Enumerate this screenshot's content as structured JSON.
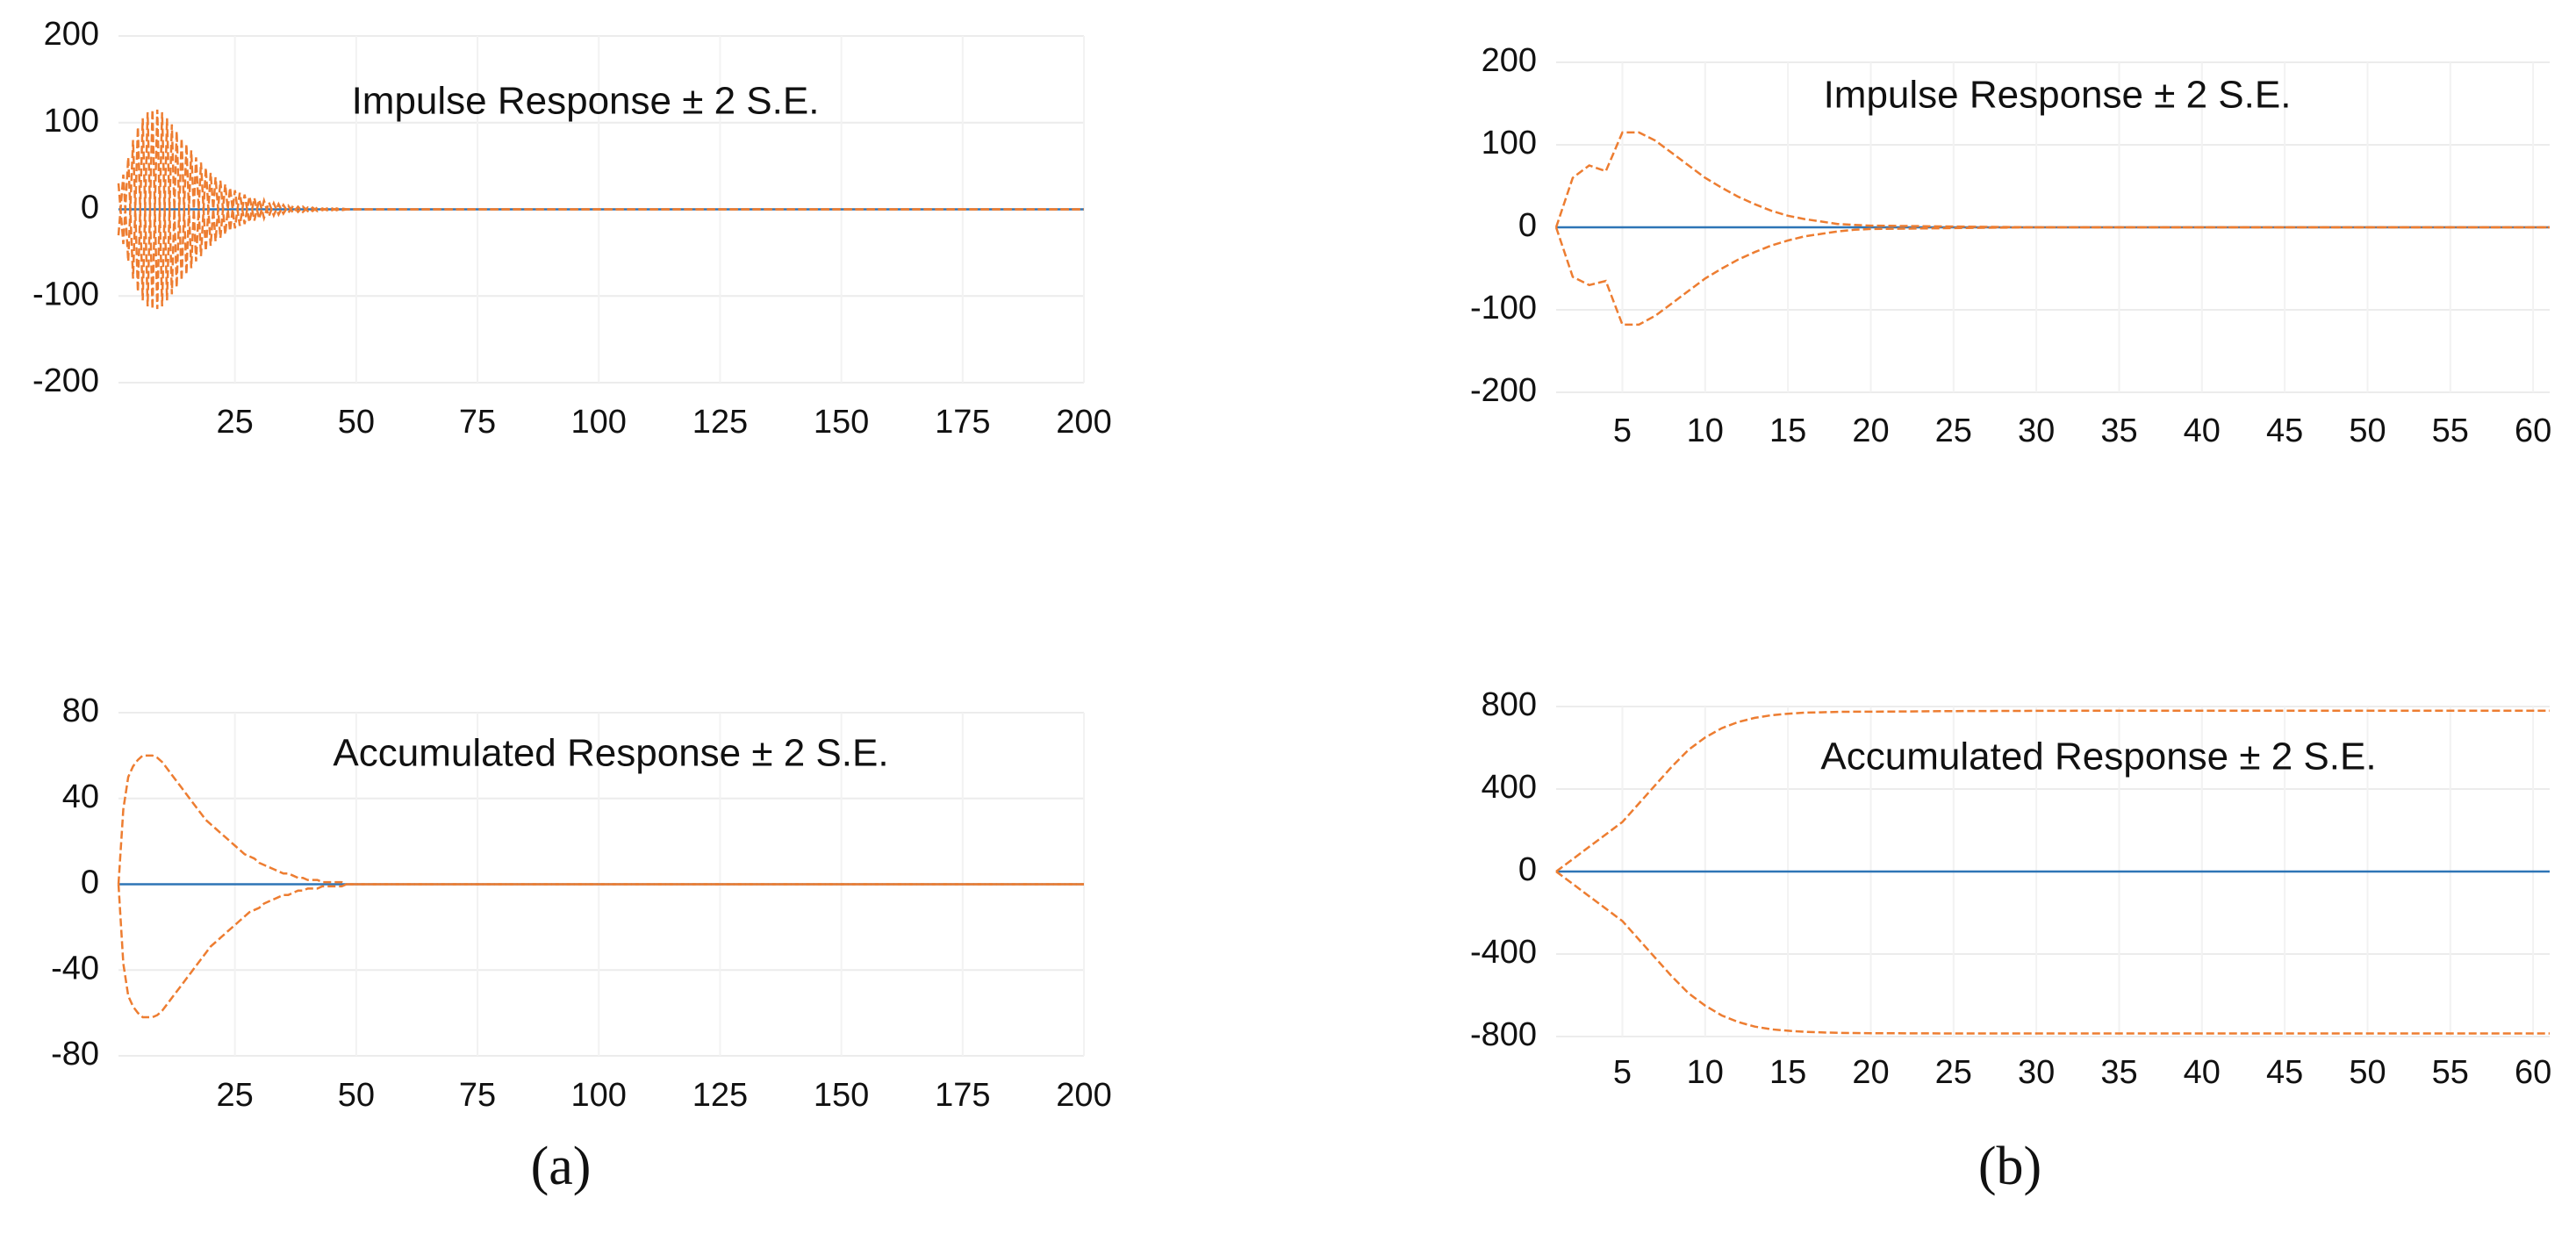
{
  "chart_data": [
    {
      "type": "line",
      "title": "Impulse Response ± 2 S.E.",
      "x": [
        1,
        2,
        3,
        4,
        5,
        6,
        7,
        8,
        9,
        10,
        11,
        12,
        13,
        14,
        15,
        16,
        17,
        18,
        19,
        20,
        21,
        22,
        23,
        24,
        25,
        26,
        27,
        28,
        29,
        30,
        31,
        32,
        33,
        34,
        35,
        36,
        37,
        38,
        39,
        40,
        41,
        42,
        43,
        44,
        45,
        46,
        47,
        48,
        49,
        50,
        60,
        70,
        80,
        90,
        100,
        110,
        120,
        130,
        140,
        150,
        160,
        170,
        180,
        190,
        200
      ],
      "xlim": [
        1,
        200
      ],
      "xticks": [
        25,
        50,
        75,
        100,
        125,
        150,
        175,
        200
      ],
      "ylim": [
        -200,
        200
      ],
      "yticks": [
        -200,
        -100,
        0,
        100,
        200
      ],
      "grid": true,
      "series": [
        {
          "color": "#2e75b6",
          "dashed": false,
          "values": [
            0,
            0,
            0,
            0,
            0,
            0,
            0,
            0,
            0,
            0,
            0,
            0,
            0,
            0,
            0,
            0,
            0,
            0,
            0,
            0,
            0,
            0,
            0,
            0,
            0,
            0,
            0,
            0,
            0,
            0,
            0,
            0,
            0,
            0,
            0,
            0,
            0,
            0,
            0,
            0,
            0,
            0,
            0,
            0,
            0,
            0,
            0,
            0,
            0,
            0,
            0,
            0,
            0,
            0,
            0,
            0,
            0,
            0,
            0,
            0,
            0,
            0,
            0,
            0,
            0
          ]
        },
        {
          "color": "#ed7d31",
          "dashed": true,
          "values": [
            30,
            -40,
            60,
            -80,
            95,
            -105,
            112,
            -115,
            115,
            -112,
            105,
            -98,
            90,
            -82,
            75,
            -68,
            60,
            -54,
            48,
            -42,
            37,
            -33,
            29,
            -25,
            22,
            -19,
            17,
            -15,
            13,
            -11,
            10,
            -8,
            7,
            -6,
            5,
            -4,
            4,
            -3,
            3,
            -2,
            2,
            -2,
            1,
            -1,
            1,
            -1,
            1,
            0,
            0,
            0,
            0,
            0,
            0,
            0,
            0,
            0,
            0,
            0,
            0,
            0,
            0,
            0,
            0,
            0,
            0
          ]
        },
        {
          "color": "#ed7d31",
          "dashed": true,
          "values": [
            -30,
            40,
            -60,
            80,
            -95,
            105,
            -112,
            115,
            -115,
            112,
            -105,
            98,
            -90,
            82,
            -75,
            68,
            -60,
            54,
            -48,
            42,
            -37,
            33,
            -29,
            25,
            -22,
            19,
            -17,
            15,
            -13,
            11,
            -10,
            8,
            -7,
            6,
            -5,
            4,
            -4,
            3,
            -3,
            2,
            -2,
            2,
            -1,
            1,
            -1,
            1,
            -1,
            0,
            0,
            0,
            0,
            0,
            0,
            0,
            0,
            0,
            0,
            0,
            0,
            0,
            0,
            0,
            0,
            0,
            0
          ]
        }
      ]
    },
    {
      "type": "line",
      "title": "Accumulated Response ± 2 S.E.",
      "x": [
        1,
        2,
        3,
        4,
        5,
        6,
        7,
        8,
        9,
        10,
        11,
        12,
        13,
        14,
        15,
        16,
        17,
        18,
        19,
        20,
        21,
        22,
        23,
        24,
        25,
        26,
        27,
        28,
        29,
        30,
        31,
        32,
        33,
        34,
        35,
        36,
        37,
        38,
        39,
        40,
        41,
        42,
        43,
        44,
        45,
        46,
        47,
        48,
        49,
        50,
        60,
        70,
        80,
        90,
        100,
        110,
        120,
        130,
        140,
        150,
        160,
        170,
        180,
        190,
        200
      ],
      "xlim": [
        1,
        200
      ],
      "xticks": [
        25,
        50,
        75,
        100,
        125,
        150,
        175,
        200
      ],
      "ylim": [
        -80,
        80
      ],
      "yticks": [
        -80,
        -40,
        0,
        40,
        80
      ],
      "grid": true,
      "series": [
        {
          "color": "#2e75b6",
          "dashed": false,
          "values": [
            0,
            0,
            0,
            0,
            0,
            0,
            0,
            0,
            0,
            0,
            0,
            0,
            0,
            0,
            0,
            0,
            0,
            0,
            0,
            0,
            0,
            0,
            0,
            0,
            0,
            0,
            0,
            0,
            0,
            0,
            0,
            0,
            0,
            0,
            0,
            0,
            0,
            0,
            0,
            0,
            0,
            0,
            0,
            0,
            0,
            0,
            0,
            0,
            0,
            0,
            0,
            0,
            0,
            0,
            0,
            0,
            0,
            0,
            0,
            0,
            0,
            0,
            0,
            0,
            0
          ]
        },
        {
          "color": "#ed7d31",
          "dashed": true,
          "values": [
            0,
            35,
            50,
            55,
            58,
            60,
            60,
            60,
            59,
            57,
            54,
            51,
            48,
            45,
            42,
            39,
            36,
            33,
            30,
            28,
            26,
            24,
            22,
            20,
            18,
            16,
            14,
            13,
            12,
            10,
            9,
            8,
            7,
            6,
            5,
            5,
            4,
            3,
            3,
            2,
            2,
            2,
            1,
            1,
            1,
            1,
            1,
            0,
            0,
            0,
            0,
            0,
            0,
            0,
            0,
            0,
            0,
            0,
            0,
            0,
            0,
            0,
            0,
            0,
            0
          ]
        },
        {
          "color": "#ed7d31",
          "dashed": true,
          "values": [
            0,
            -37,
            -52,
            -57,
            -60,
            -62,
            -62,
            -62,
            -61,
            -59,
            -56,
            -53,
            -50,
            -47,
            -44,
            -41,
            -38,
            -35,
            -32,
            -29,
            -27,
            -25,
            -23,
            -21,
            -19,
            -17,
            -15,
            -13,
            -12,
            -11,
            -9,
            -8,
            -7,
            -6,
            -5,
            -5,
            -4,
            -3,
            -3,
            -2,
            -2,
            -2,
            -1,
            -1,
            -1,
            -1,
            -1,
            0,
            0,
            0,
            0,
            0,
            0,
            0,
            0,
            0,
            0,
            0,
            0,
            0,
            0,
            0,
            0,
            0,
            0
          ]
        }
      ]
    },
    {
      "type": "line",
      "title": "Impulse Response ± 2 S.E.",
      "x": [
        1,
        2,
        3,
        4,
        5,
        6,
        7,
        8,
        9,
        10,
        11,
        12,
        13,
        14,
        15,
        16,
        17,
        18,
        19,
        20,
        25,
        30,
        35,
        40,
        45,
        50,
        55,
        60,
        61
      ],
      "xlim": [
        1,
        61
      ],
      "xticks": [
        5,
        10,
        15,
        20,
        25,
        30,
        35,
        40,
        45,
        50,
        55,
        60
      ],
      "ylim": [
        -200,
        200
      ],
      "yticks": [
        -200,
        -100,
        0,
        100,
        200
      ],
      "grid": true,
      "series": [
        {
          "color": "#2e75b6",
          "dashed": false,
          "values": [
            0,
            0,
            0,
            0,
            0,
            0,
            0,
            0,
            0,
            0,
            0,
            0,
            0,
            0,
            0,
            0,
            0,
            0,
            0,
            0,
            0,
            0,
            0,
            0,
            0,
            0,
            0,
            0,
            0
          ]
        },
        {
          "color": "#ed7d31",
          "dashed": true,
          "values": [
            0,
            60,
            75,
            68,
            115,
            115,
            105,
            90,
            75,
            60,
            48,
            37,
            28,
            20,
            14,
            10,
            7,
            4,
            3,
            2,
            1,
            0,
            0,
            0,
            0,
            0,
            0,
            0,
            0
          ]
        },
        {
          "color": "#ed7d31",
          "dashed": true,
          "values": [
            0,
            -60,
            -70,
            -65,
            -118,
            -118,
            -107,
            -92,
            -77,
            -62,
            -50,
            -39,
            -30,
            -22,
            -16,
            -11,
            -8,
            -5,
            -3,
            -2,
            -1,
            0,
            0,
            0,
            0,
            0,
            0,
            0,
            0
          ]
        }
      ]
    },
    {
      "type": "line",
      "title": "Accumulated Response ± 2 S.E.",
      "x": [
        1,
        2,
        3,
        4,
        5,
        6,
        7,
        8,
        9,
        10,
        11,
        12,
        13,
        14,
        15,
        16,
        17,
        18,
        19,
        20,
        25,
        30,
        35,
        40,
        45,
        50,
        55,
        60,
        61
      ],
      "xlim": [
        1,
        61
      ],
      "xticks": [
        5,
        10,
        15,
        20,
        25,
        30,
        35,
        40,
        45,
        50,
        55,
        60
      ],
      "ylim": [
        -800,
        800
      ],
      "yticks": [
        -800,
        -400,
        0,
        400,
        800
      ],
      "grid": true,
      "series": [
        {
          "color": "#2e75b6",
          "dashed": false,
          "values": [
            0,
            0,
            0,
            0,
            0,
            0,
            0,
            0,
            0,
            0,
            0,
            0,
            0,
            0,
            0,
            0,
            0,
            0,
            0,
            0,
            0,
            0,
            0,
            0,
            0,
            0,
            0,
            0,
            0
          ]
        },
        {
          "color": "#ed7d31",
          "dashed": true,
          "values": [
            0,
            60,
            120,
            180,
            240,
            330,
            420,
            510,
            590,
            650,
            695,
            725,
            745,
            758,
            765,
            770,
            772,
            774,
            775,
            775,
            778,
            779,
            780,
            780,
            780,
            780,
            780,
            780,
            780
          ]
        },
        {
          "color": "#ed7d31",
          "dashed": true,
          "values": [
            0,
            -60,
            -120,
            -180,
            -240,
            -330,
            -420,
            -510,
            -590,
            -650,
            -698,
            -730,
            -752,
            -765,
            -772,
            -777,
            -780,
            -782,
            -783,
            -784,
            -785,
            -785,
            -785,
            -785,
            -785,
            -785,
            -785,
            -785,
            -785
          ]
        }
      ]
    }
  ],
  "panel_labels": [
    "(a)",
    "(b)"
  ]
}
